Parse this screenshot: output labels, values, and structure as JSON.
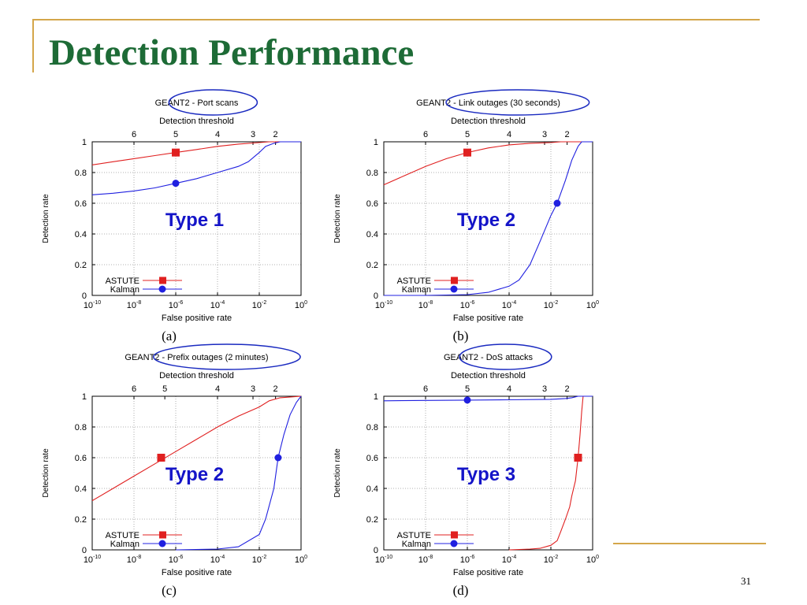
{
  "slide": {
    "title": "Detection Performance",
    "page_number": "31",
    "colors": {
      "title": "#1d6b36",
      "rule": "#d4a64a",
      "type_label": "#1414c8",
      "astute": "#e02020",
      "kalman": "#2020e0"
    }
  },
  "chart_data": [
    {
      "type": "line",
      "caption": "(a)",
      "title": "GEANT2 - Port scans",
      "xlabel": "False positive rate",
      "ylabel": "Detection rate",
      "x2label": "Detection threshold",
      "x_scale": "log",
      "xlim": [
        1e-10,
        1
      ],
      "ylim": [
        0,
        1
      ],
      "x_ticks": [
        "10^-10",
        "10^-8",
        "10^-6",
        "10^-4",
        "10^-2",
        "10^0"
      ],
      "y_ticks": [
        "0",
        "0.2",
        "0.4",
        "0.6",
        "0.8",
        "1"
      ],
      "x2_ticks": [
        {
          "label": "6",
          "x": 1e-08
        },
        {
          "label": "5",
          "x": 1e-06
        },
        {
          "label": "4",
          "x": 0.0001
        },
        {
          "label": "3",
          "x": 0.005
        },
        {
          "label": "2",
          "x": 0.06
        }
      ],
      "annotation": "Type 1",
      "legend": "bottom-left",
      "grid": true,
      "series": [
        {
          "name": "ASTUTE",
          "color": "#e02020",
          "marker": "square",
          "marker_point": [
            1e-06,
            0.93
          ],
          "x": [
            1e-10,
            1e-09,
            1e-08,
            1e-07,
            1e-06,
            1e-05,
            0.0001,
            0.001,
            0.01,
            0.03,
            0.1,
            1
          ],
          "y": [
            0.85,
            0.87,
            0.89,
            0.91,
            0.93,
            0.95,
            0.97,
            0.985,
            0.995,
            1.0,
            1.0,
            1.0
          ]
        },
        {
          "name": "Kalman",
          "color": "#2020e0",
          "marker": "circle",
          "marker_point": [
            1e-06,
            0.73
          ],
          "x": [
            1e-10,
            1e-09,
            1e-08,
            1e-07,
            1e-06,
            1e-05,
            0.0001,
            0.001,
            0.003,
            0.01,
            0.02,
            0.05,
            0.1,
            1
          ],
          "y": [
            0.655,
            0.665,
            0.68,
            0.7,
            0.73,
            0.76,
            0.8,
            0.84,
            0.87,
            0.93,
            0.97,
            0.99,
            1.0,
            1.0
          ]
        }
      ]
    },
    {
      "type": "line",
      "caption": "(b)",
      "title": "GEANT2 - Link outages (30 seconds)",
      "xlabel": "False positive rate",
      "ylabel": "Detection rate",
      "x2label": "Detection threshold",
      "x_scale": "log",
      "xlim": [
        1e-10,
        1
      ],
      "ylim": [
        0,
        1
      ],
      "x_ticks": [
        "10^-10",
        "10^-8",
        "10^-6",
        "10^-4",
        "10^-2",
        "10^0"
      ],
      "y_ticks": [
        "0",
        "0.2",
        "0.4",
        "0.6",
        "0.8",
        "1"
      ],
      "x2_ticks": [
        {
          "label": "6",
          "x": 1e-08
        },
        {
          "label": "5",
          "x": 1e-06
        },
        {
          "label": "4",
          "x": 0.0001
        },
        {
          "label": "3",
          "x": 0.005
        },
        {
          "label": "2",
          "x": 0.06
        }
      ],
      "annotation": "Type 2",
      "legend": "bottom-left",
      "grid": true,
      "series": [
        {
          "name": "ASTUTE",
          "color": "#e02020",
          "marker": "square",
          "marker_point": [
            1e-06,
            0.93
          ],
          "x": [
            1e-10,
            1e-09,
            1e-08,
            1e-07,
            1e-06,
            1e-05,
            0.0001,
            0.001,
            0.01,
            0.03,
            0.1,
            1
          ],
          "y": [
            0.72,
            0.78,
            0.84,
            0.89,
            0.93,
            0.96,
            0.98,
            0.99,
            0.995,
            1.0,
            1.0,
            1.0
          ]
        },
        {
          "name": "Kalman",
          "color": "#2020e0",
          "marker": "circle",
          "marker_point": [
            0.02,
            0.6
          ],
          "x": [
            1e-10,
            1e-08,
            1e-06,
            1e-05,
            0.0001,
            0.0003,
            0.001,
            0.003,
            0.01,
            0.02,
            0.05,
            0.1,
            0.2,
            0.3,
            1
          ],
          "y": [
            0.0,
            0.0,
            0.005,
            0.02,
            0.06,
            0.1,
            0.2,
            0.35,
            0.52,
            0.6,
            0.75,
            0.88,
            0.97,
            1.0,
            1.0
          ]
        }
      ]
    },
    {
      "type": "line",
      "caption": "(c)",
      "title": "GEANT2 - Prefix outages (2 minutes)",
      "xlabel": "False positive rate",
      "ylabel": "Detection rate",
      "x2label": "Detection threshold",
      "x_scale": "log",
      "xlim": [
        1e-10,
        1
      ],
      "ylim": [
        0,
        1
      ],
      "x_ticks": [
        "10^-10",
        "10^-8",
        "10^-6",
        "10^-4",
        "10^-2",
        "10^0"
      ],
      "y_ticks": [
        "0",
        "0.2",
        "0.4",
        "0.6",
        "0.8",
        "1"
      ],
      "x2_ticks": [
        {
          "label": "6",
          "x": 1e-08
        },
        {
          "label": "5",
          "x": 3e-07
        },
        {
          "label": "4",
          "x": 0.0001
        },
        {
          "label": "3",
          "x": 0.005
        },
        {
          "label": "2",
          "x": 0.06
        }
      ],
      "annotation": "Type 2",
      "legend": "bottom-left",
      "grid": true,
      "series": [
        {
          "name": "ASTUTE",
          "color": "#e02020",
          "marker": "square",
          "marker_point": [
            2e-07,
            0.6
          ],
          "x": [
            1e-10,
            1e-09,
            1e-08,
            1e-07,
            1e-06,
            1e-05,
            0.0001,
            0.001,
            0.01,
            0.03,
            0.1,
            1
          ],
          "y": [
            0.32,
            0.4,
            0.48,
            0.56,
            0.64,
            0.72,
            0.8,
            0.87,
            0.93,
            0.97,
            0.99,
            1.0
          ]
        },
        {
          "name": "Kalman",
          "color": "#2020e0",
          "marker": "circle",
          "marker_point": [
            0.08,
            0.6
          ],
          "x": [
            1e-06,
            0.0001,
            0.001,
            0.01,
            0.02,
            0.05,
            0.08,
            0.15,
            0.3,
            0.6,
            1
          ],
          "y": [
            0.0,
            0.005,
            0.02,
            0.1,
            0.2,
            0.4,
            0.6,
            0.75,
            0.88,
            0.96,
            1.0
          ]
        }
      ]
    },
    {
      "type": "line",
      "caption": "(d)",
      "title": "GEANT2 - DoS attacks",
      "xlabel": "False positive rate",
      "ylabel": "Detection rate",
      "x2label": "Detection threshold",
      "x_scale": "log",
      "xlim": [
        1e-10,
        1
      ],
      "ylim": [
        0,
        1
      ],
      "x_ticks": [
        "10^-10",
        "10^-8",
        "10^-6",
        "10^-4",
        "10^-2",
        "10^0"
      ],
      "y_ticks": [
        "0",
        "0.2",
        "0.4",
        "0.6",
        "0.8",
        "1"
      ],
      "x2_ticks": [
        {
          "label": "6",
          "x": 1e-08
        },
        {
          "label": "5",
          "x": 1e-06
        },
        {
          "label": "4",
          "x": 0.0001
        },
        {
          "label": "3",
          "x": 0.005
        },
        {
          "label": "2",
          "x": 0.06
        }
      ],
      "annotation": "Type 3",
      "legend": "bottom-left",
      "grid": true,
      "series": [
        {
          "name": "ASTUTE",
          "color": "#e02020",
          "marker": "square",
          "marker_point": [
            0.2,
            0.6
          ],
          "x": [
            0.0001,
            0.001,
            0.003,
            0.01,
            0.02,
            0.03,
            0.05,
            0.08,
            0.1,
            0.15,
            0.2,
            0.25,
            0.3,
            0.35,
            1
          ],
          "y": [
            0.0,
            0.005,
            0.01,
            0.03,
            0.06,
            0.12,
            0.2,
            0.28,
            0.35,
            0.45,
            0.6,
            0.75,
            0.9,
            1.0,
            1.0
          ]
        },
        {
          "name": "Kalman",
          "color": "#2020e0",
          "marker": "circle",
          "marker_point": [
            1e-06,
            0.975
          ],
          "x": [
            1e-10,
            1e-08,
            1e-06,
            0.0001,
            0.01,
            0.05,
            0.1,
            0.2,
            1
          ],
          "y": [
            0.97,
            0.973,
            0.975,
            0.977,
            0.98,
            0.985,
            0.99,
            1.0,
            1.0
          ]
        }
      ]
    }
  ]
}
